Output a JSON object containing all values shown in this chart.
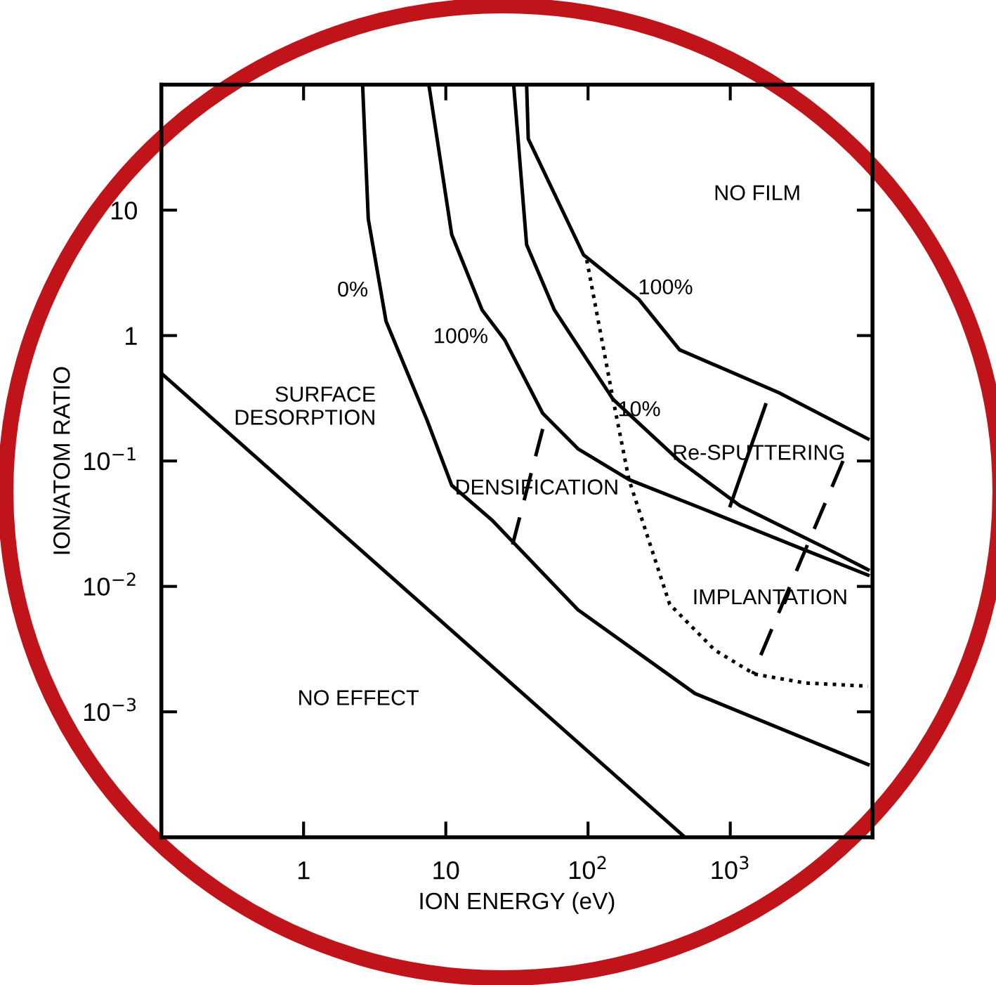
{
  "chart_data": {
    "type": "line",
    "log": "xy",
    "xlabel": "ION ENERGY (eV)",
    "ylabel": "ION/ATOM RATIO",
    "xlim": [
      0.1,
      10000
    ],
    "ylim": [
      0.0001,
      100
    ],
    "xticks": [
      1,
      10,
      {
        "value": 100,
        "label": "10$^{2}$"
      },
      {
        "value": 1000,
        "label": "10$^{3}$"
      }
    ],
    "yticks": [
      {
        "value": 0.001,
        "label": "10$^{−3}$"
      },
      {
        "value": 0.01,
        "label": "10$^{−2}$"
      },
      {
        "value": 0.1,
        "label": "10$^{−1}$"
      },
      1,
      10
    ],
    "grid": false,
    "series": [
      {
        "color": "#000000",
        "line_style": "solid",
        "x": [
          0.1,
          480
        ],
        "values": [
          0.5,
          0.0001
        ]
      },
      {
        "color": "#000000",
        "line_style": "solid",
        "x": [
          2.6,
          2.85,
          3.8,
          7.4,
          11,
          21,
          85,
          565,
          9300
        ],
        "values": [
          100,
          8.5,
          1.3,
          0.21,
          0.064,
          0.034,
          0.0065,
          0.0014,
          0.00038
        ]
      },
      {
        "color": "#000000",
        "line_style": "solid",
        "x": [
          7.6,
          11,
          18,
          26,
          48,
          85,
          194,
          660,
          3350,
          9300
        ],
        "values": [
          100,
          6.4,
          1.6,
          0.92,
          0.24,
          0.125,
          0.071,
          0.041,
          0.0195,
          0.0123
        ]
      },
      {
        "color": "#000000",
        "line_style": "solid",
        "x": [
          30,
          37,
          58,
          150,
          440,
          1170,
          5000,
          9300
        ],
        "values": [
          100,
          5.3,
          1.6,
          0.31,
          0.1,
          0.044,
          0.0195,
          0.0136
        ]
      },
      {
        "color": "#000000",
        "line_style": "solid",
        "x": [
          37,
          38,
          93,
          227,
          440,
          2200,
          9300
        ],
        "values": [
          100,
          37,
          4.4,
          1.95,
          0.77,
          0.35,
          0.15
        ]
      },
      {
        "color": "#000000",
        "line_style": "dotted",
        "x": [
          98,
          150,
          194,
          375,
          780,
          1480,
          3350,
          9300
        ],
        "values": [
          4.0,
          0.31,
          0.071,
          0.0072,
          0.0031,
          0.002,
          0.0017,
          0.0016
        ]
      },
      {
        "color": "#000000",
        "line_style": "dashed",
        "x": [
          48,
          28.5
        ],
        "values": [
          0.18,
          0.0186
        ]
      },
      {
        "color": "#000000",
        "line_style": "solid",
        "x": [
          1770,
          1000
        ],
        "values": [
          0.28,
          0.044
        ]
      },
      {
        "color": "#000000",
        "line_style": "dashed",
        "x": [
          6200,
          1440
        ],
        "values": [
          0.1,
          0.002
        ]
      }
    ],
    "annotations": [
      "NO FILM",
      "100%",
      "0%",
      "100%",
      "10%",
      "SURFACE\nDESORPTION",
      "Re-SPUTTERING",
      "DENSIFICATION",
      "IMPLANTATION",
      "NO EFFECT"
    ]
  }
}
